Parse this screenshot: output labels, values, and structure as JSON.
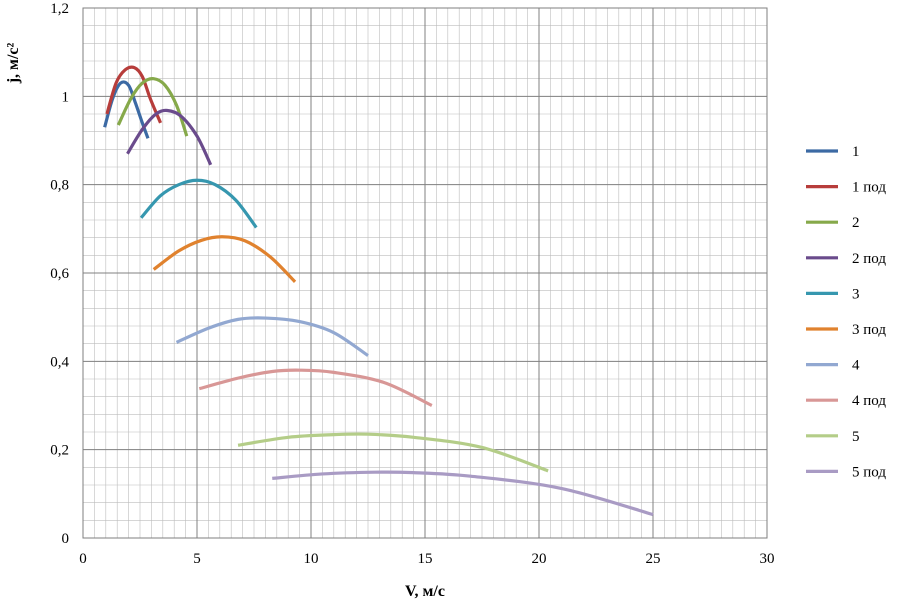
{
  "chart_data": {
    "type": "line",
    "xlabel": "V, м/с",
    "ylabel": "j, м/с²",
    "xlim": [
      0,
      30
    ],
    "ylim": [
      0,
      1.2
    ],
    "x_ticks": [
      0,
      5,
      10,
      15,
      20,
      25,
      30
    ],
    "x_tick_labels": [
      "0",
      "5",
      "10",
      "15",
      "20",
      "25",
      "30"
    ],
    "y_ticks": [
      0,
      0.2,
      0.4,
      0.6,
      0.8,
      1.0,
      1.2
    ],
    "y_tick_labels": [
      "0",
      "0,2",
      "0,4",
      "0,6",
      "0,8",
      "1",
      "1,2"
    ],
    "grid": true,
    "minor_grid": {
      "x_step": 0.5,
      "y_step": 0.04
    },
    "legend_position": "right",
    "series": [
      {
        "name": "1",
        "color": "#3C6AA4",
        "x": [
          0.95,
          1.3,
          1.65,
          2.0,
          2.3,
          2.6,
          2.85
        ],
        "y": [
          0.93,
          0.995,
          1.03,
          1.025,
          0.985,
          0.94,
          0.905
        ]
      },
      {
        "name": "1 под",
        "color": "#B73D3B",
        "x": [
          1.05,
          1.45,
          1.85,
          2.25,
          2.6,
          2.95,
          3.4
        ],
        "y": [
          0.96,
          1.03,
          1.06,
          1.065,
          1.045,
          0.995,
          0.94
        ]
      },
      {
        "name": "2",
        "color": "#86A94A",
        "x": [
          1.55,
          2.1,
          2.6,
          3.1,
          3.6,
          4.1,
          4.55
        ],
        "y": [
          0.935,
          0.995,
          1.03,
          1.04,
          1.025,
          0.98,
          0.91
        ]
      },
      {
        "name": "2 под",
        "color": "#6A4B8C",
        "x": [
          1.95,
          2.6,
          3.2,
          3.7,
          4.3,
          5.0,
          5.6
        ],
        "y": [
          0.87,
          0.925,
          0.96,
          0.968,
          0.955,
          0.91,
          0.845
        ]
      },
      {
        "name": "3",
        "color": "#3697AF",
        "x": [
          2.55,
          3.4,
          4.2,
          5.0,
          5.8,
          6.7,
          7.6
        ],
        "y": [
          0.725,
          0.775,
          0.8,
          0.81,
          0.8,
          0.765,
          0.703
        ]
      },
      {
        "name": "3 под",
        "color": "#E0822E",
        "x": [
          3.1,
          4.2,
          5.2,
          6.1,
          7.1,
          8.2,
          9.3
        ],
        "y": [
          0.608,
          0.65,
          0.674,
          0.682,
          0.673,
          0.637,
          0.58
        ]
      },
      {
        "name": "4",
        "color": "#92A8D1",
        "x": [
          4.1,
          5.5,
          6.8,
          8.0,
          9.5,
          11.0,
          12.5
        ],
        "y": [
          0.443,
          0.475,
          0.495,
          0.498,
          0.49,
          0.465,
          0.413
        ]
      },
      {
        "name": "4 под",
        "color": "#D89796",
        "x": [
          5.1,
          6.8,
          8.3,
          9.5,
          11.0,
          13.2,
          15.3
        ],
        "y": [
          0.338,
          0.362,
          0.377,
          0.38,
          0.375,
          0.352,
          0.3
        ]
      },
      {
        "name": "5",
        "color": "#B4CD88",
        "x": [
          6.8,
          9.0,
          11.0,
          12.5,
          14.5,
          17.5,
          20.4
        ],
        "y": [
          0.21,
          0.228,
          0.234,
          0.235,
          0.228,
          0.205,
          0.152
        ]
      },
      {
        "name": "5 под",
        "color": "#A99BC4",
        "x": [
          8.3,
          10.5,
          12.8,
          14.5,
          17.0,
          21.0,
          25.0
        ],
        "y": [
          0.135,
          0.145,
          0.149,
          0.148,
          0.14,
          0.112,
          0.053
        ]
      }
    ]
  }
}
